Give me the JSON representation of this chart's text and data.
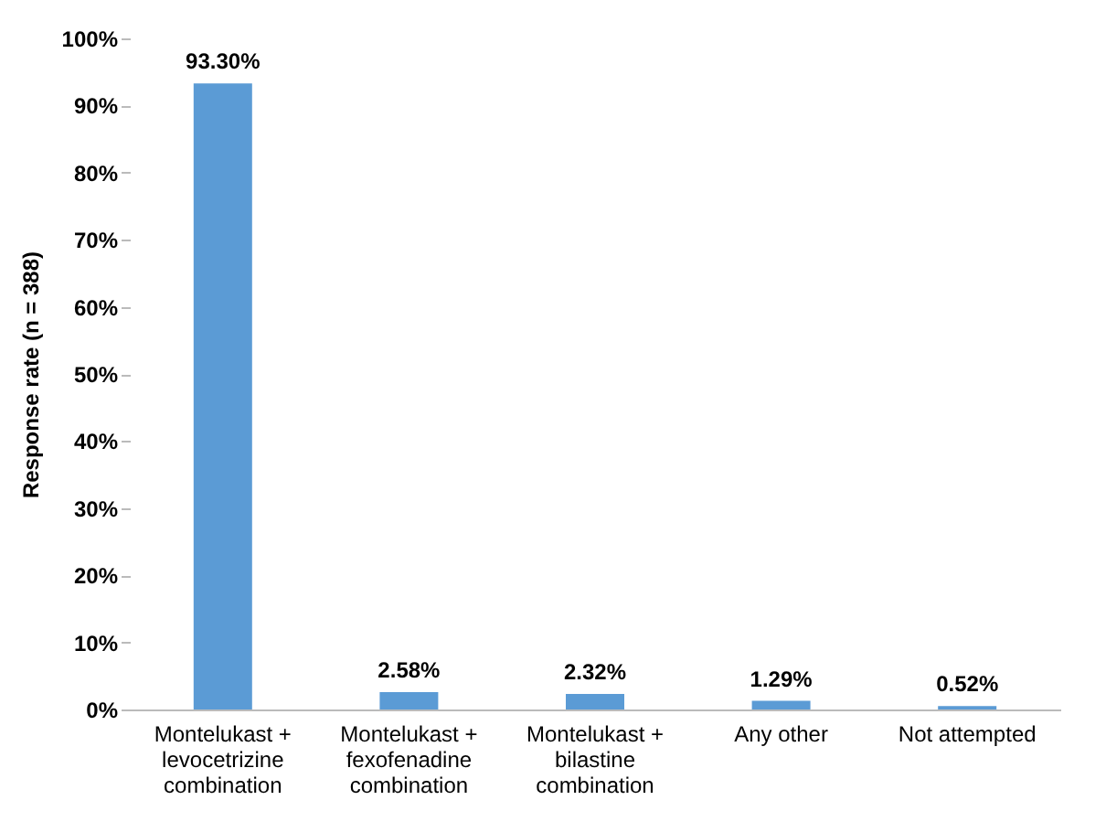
{
  "chart_data": {
    "type": "bar",
    "ylabel": "Response rate (n = 388)",
    "categories": [
      "Montelukast + levocetrizine combination",
      "Montelukast + fexofenadine combination",
      "Montelukast + bilastine combination",
      "Any other",
      "Not attempted"
    ],
    "values": [
      93.3,
      2.58,
      2.32,
      1.29,
      0.52
    ],
    "value_labels": [
      "93.30%",
      "2.58%",
      "2.32%",
      "1.29%",
      "0.52%"
    ],
    "color": "#5b9bd5",
    "ylim": [
      0,
      100
    ],
    "yticks": [
      {
        "value": 0,
        "label": "0%"
      },
      {
        "value": 10,
        "label": "10%"
      },
      {
        "value": 20,
        "label": "20%"
      },
      {
        "value": 30,
        "label": "30%"
      },
      {
        "value": 40,
        "label": "40%"
      },
      {
        "value": 50,
        "label": "50%"
      },
      {
        "value": 60,
        "label": "60%"
      },
      {
        "value": 70,
        "label": "70%"
      },
      {
        "value": 80,
        "label": "80%"
      },
      {
        "value": 90,
        "label": "90%"
      },
      {
        "value": 100,
        "label": "100%"
      }
    ],
    "grid": false
  }
}
